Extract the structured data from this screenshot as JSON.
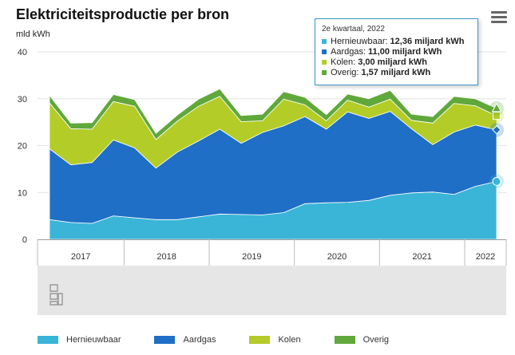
{
  "title": "Elektriciteitsproductie per bron",
  "y_unit": "mld kWh",
  "menu_icon": "hamburger-menu-icon",
  "logo_icon": "cbs-logo-icon",
  "tooltip": {
    "header": "2e kwartaal, 2022",
    "rows": [
      {
        "label": "Hernieuwbaar:",
        "value": "12,36 miljard kWh",
        "color": "#3ab5d8"
      },
      {
        "label": "Aardgas:",
        "value": "11,00 miljard kWh",
        "color": "#1f6fc6"
      },
      {
        "label": "Kolen:",
        "value": "3,00 miljard kWh",
        "color": "#b4cc27"
      },
      {
        "label": "Overig:",
        "value": "1,57 miljard kWh",
        "color": "#60a83c"
      }
    ]
  },
  "chart_data": {
    "type": "area",
    "stacked": true,
    "title": "Elektriciteitsproductie per bron",
    "ylabel": "mld kWh",
    "ylim": [
      0,
      40
    ],
    "y_ticks": [
      0,
      10,
      20,
      30,
      40
    ],
    "grid": true,
    "legend_position": "bottom",
    "x": [
      "2017 K1",
      "2017 K2",
      "2017 K3",
      "2017 K4",
      "2018 K1",
      "2018 K2",
      "2018 K3",
      "2018 K4",
      "2019 K1",
      "2019 K2",
      "2019 K3",
      "2019 K4",
      "2020 K1",
      "2020 K2",
      "2020 K3",
      "2020 K4",
      "2021 K1",
      "2021 K2",
      "2021 K3",
      "2021 K4",
      "2022 K1",
      "2022 K2"
    ],
    "year_labels": [
      "2017",
      "2018",
      "2019",
      "2020",
      "2021",
      "2022"
    ],
    "series": [
      {
        "name": "Hernieuwbaar",
        "color": "#3ab5d8",
        "values": [
          4.2,
          3.6,
          3.4,
          5.0,
          4.6,
          4.2,
          4.2,
          4.8,
          5.4,
          5.3,
          5.2,
          5.7,
          7.6,
          7.8,
          7.9,
          8.3,
          9.4,
          9.9,
          10.1,
          9.6,
          11.3,
          12.36
        ]
      },
      {
        "name": "Aardgas",
        "color": "#1f6fc6",
        "values": [
          15.1,
          12.3,
          13.0,
          16.2,
          14.9,
          11.0,
          14.4,
          16.2,
          18.1,
          15.2,
          17.6,
          18.5,
          18.6,
          15.7,
          19.3,
          17.5,
          17.9,
          13.7,
          10.1,
          13.3,
          13.1,
          11.0
        ]
      },
      {
        "name": "Kolen",
        "color": "#b4cc27",
        "values": [
          9.8,
          7.7,
          7.1,
          8.2,
          8.9,
          6.1,
          6.6,
          7.4,
          7.0,
          4.6,
          2.5,
          5.7,
          2.5,
          1.8,
          2.5,
          2.4,
          2.6,
          1.8,
          4.6,
          6.1,
          4.1,
          3.0
        ]
      },
      {
        "name": "Overig",
        "color": "#60a83c",
        "values": [
          1.6,
          1.2,
          1.4,
          1.5,
          1.4,
          1.3,
          1.3,
          1.5,
          1.6,
          1.3,
          1.4,
          1.6,
          1.6,
          1.3,
          1.3,
          1.8,
          1.9,
          1.3,
          1.4,
          1.5,
          1.5,
          1.57
        ]
      }
    ]
  }
}
